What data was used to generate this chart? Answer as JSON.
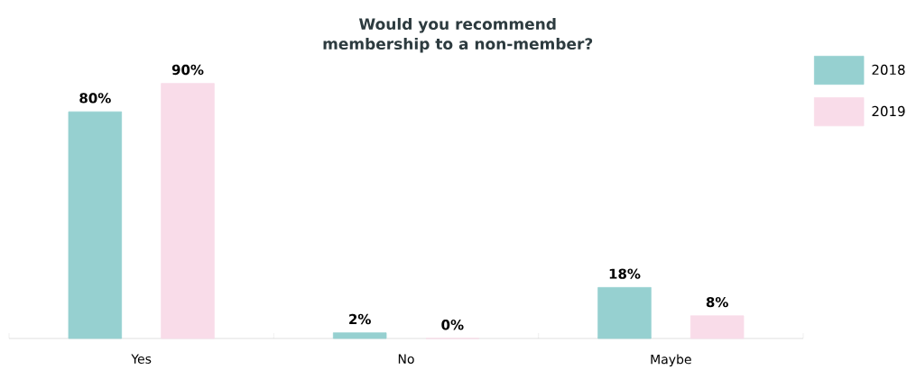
{
  "chart_data": {
    "type": "bar",
    "title": "Would you recommend membership to a non-member?",
    "categories": [
      "Yes",
      "No",
      "Maybe"
    ],
    "series": [
      {
        "name": "2018",
        "color": "#96d0d0",
        "values": [
          80,
          2,
          18
        ],
        "value_labels": [
          "80%",
          "2%",
          "18%"
        ]
      },
      {
        "name": "2019",
        "color": "#f9dce9",
        "values": [
          90,
          0,
          8
        ],
        "value_labels": [
          "90%",
          "0%",
          "8%"
        ]
      }
    ],
    "legend": "top right",
    "grid": false
  }
}
